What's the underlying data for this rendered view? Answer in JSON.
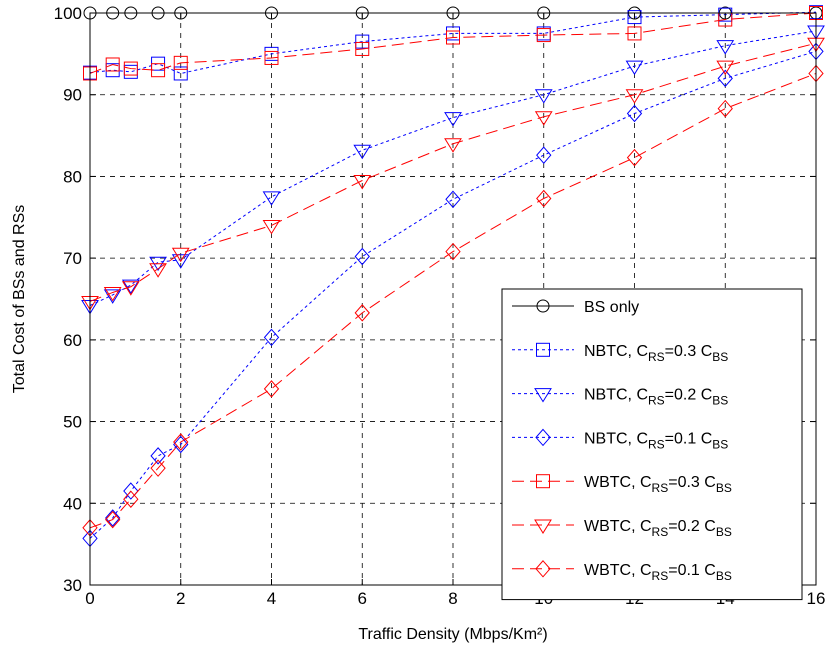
{
  "chart_data": {
    "type": "line",
    "xlabel": "Traffic Density (Mbps/Km²)",
    "ylabel": "Total Cost of BSs and RSs",
    "xlim": [
      0,
      16
    ],
    "ylim": [
      30,
      100
    ],
    "xticks": [
      0,
      2,
      4,
      6,
      8,
      10,
      12,
      14,
      16
    ],
    "yticks": [
      30,
      40,
      50,
      60,
      70,
      80,
      90,
      100
    ],
    "grid": true,
    "legend_position": "bottom-right",
    "series": [
      {
        "name": "BS only",
        "label_parts": [
          "BS only"
        ],
        "color": "#000000",
        "linestyle": "solid",
        "marker": "circle",
        "x": [
          0,
          0.5,
          0.9,
          1.5,
          2,
          4,
          6,
          8,
          10,
          12,
          14,
          16
        ],
        "y": [
          100,
          100,
          100,
          100,
          100,
          100,
          100,
          100,
          100,
          100,
          100,
          100
        ]
      },
      {
        "name": "NBTC, CRS=0.3 CBS",
        "label_parts": [
          "NBTC, C",
          "RS",
          "=0.3 C",
          "BS"
        ],
        "color": "#0000ff",
        "linestyle": "dotted",
        "marker": "square",
        "x": [
          0,
          0.5,
          0.9,
          1.5,
          2,
          4,
          6,
          8,
          10,
          12,
          14,
          16
        ],
        "y": [
          92.7,
          93.0,
          92.8,
          93.8,
          92.6,
          95.0,
          96.5,
          97.5,
          97.5,
          99.5,
          99.8,
          100.1
        ]
      },
      {
        "name": "NBTC, CRS=0.2 CBS",
        "label_parts": [
          "NBTC, C",
          "RS",
          "=0.2 C",
          "BS"
        ],
        "color": "#0000ff",
        "linestyle": "dotted",
        "marker": "triangle-down",
        "x": [
          0,
          0.5,
          0.9,
          1.5,
          2,
          4,
          6,
          8,
          10,
          12,
          14,
          16
        ],
        "y": [
          64.2,
          65.5,
          66.7,
          69.5,
          69.8,
          77.5,
          83.2,
          87.2,
          90.0,
          93.5,
          96.0,
          97.8
        ]
      },
      {
        "name": "NBTC, CRS=0.1 CBS",
        "label_parts": [
          "NBTC, C",
          "RS",
          "=0.1 C",
          "BS"
        ],
        "color": "#0000ff",
        "linestyle": "dotted",
        "marker": "diamond",
        "x": [
          0,
          0.5,
          0.9,
          1.5,
          2,
          4,
          6,
          8,
          10,
          12,
          14,
          16
        ],
        "y": [
          35.7,
          38.2,
          41.5,
          45.8,
          47.2,
          60.3,
          70.2,
          77.2,
          82.6,
          87.7,
          92.0,
          95.3
        ]
      },
      {
        "name": "WBTC, CRS=0.3 CBS",
        "label_parts": [
          "WBTC, C",
          "RS",
          "=0.3 C",
          "BS"
        ],
        "color": "#ff0000",
        "linestyle": "dashed",
        "marker": "square",
        "x": [
          0,
          0.5,
          0.9,
          1.5,
          2,
          4,
          6,
          8,
          10,
          12,
          14,
          16
        ],
        "y": [
          92.6,
          93.7,
          93.2,
          93.0,
          93.9,
          94.5,
          95.6,
          97.0,
          97.3,
          97.5,
          99.2,
          100.0
        ]
      },
      {
        "name": "WBTC, CRS=0.2 CBS",
        "label_parts": [
          "WBTC, C",
          "RS",
          "=0.2 C",
          "BS"
        ],
        "color": "#ff0000",
        "linestyle": "dashed",
        "marker": "triangle-down",
        "x": [
          0,
          0.5,
          0.9,
          1.5,
          2,
          4,
          6,
          8,
          10,
          12,
          14,
          16
        ],
        "y": [
          64.7,
          65.8,
          66.5,
          68.7,
          70.6,
          74.0,
          79.5,
          84.0,
          87.3,
          90.0,
          93.5,
          96.3
        ]
      },
      {
        "name": "WBTC, CRS=0.1 CBS",
        "label_parts": [
          "WBTC, C",
          "RS",
          "=0.1 C",
          "BS"
        ],
        "color": "#ff0000",
        "linestyle": "dashed",
        "marker": "diamond",
        "x": [
          0,
          0.5,
          0.9,
          1.5,
          2,
          4,
          6,
          8,
          10,
          12,
          14,
          16
        ],
        "y": [
          37.0,
          38.0,
          40.5,
          44.3,
          47.5,
          54.0,
          63.3,
          70.8,
          77.3,
          82.3,
          88.3,
          92.6
        ]
      }
    ]
  }
}
